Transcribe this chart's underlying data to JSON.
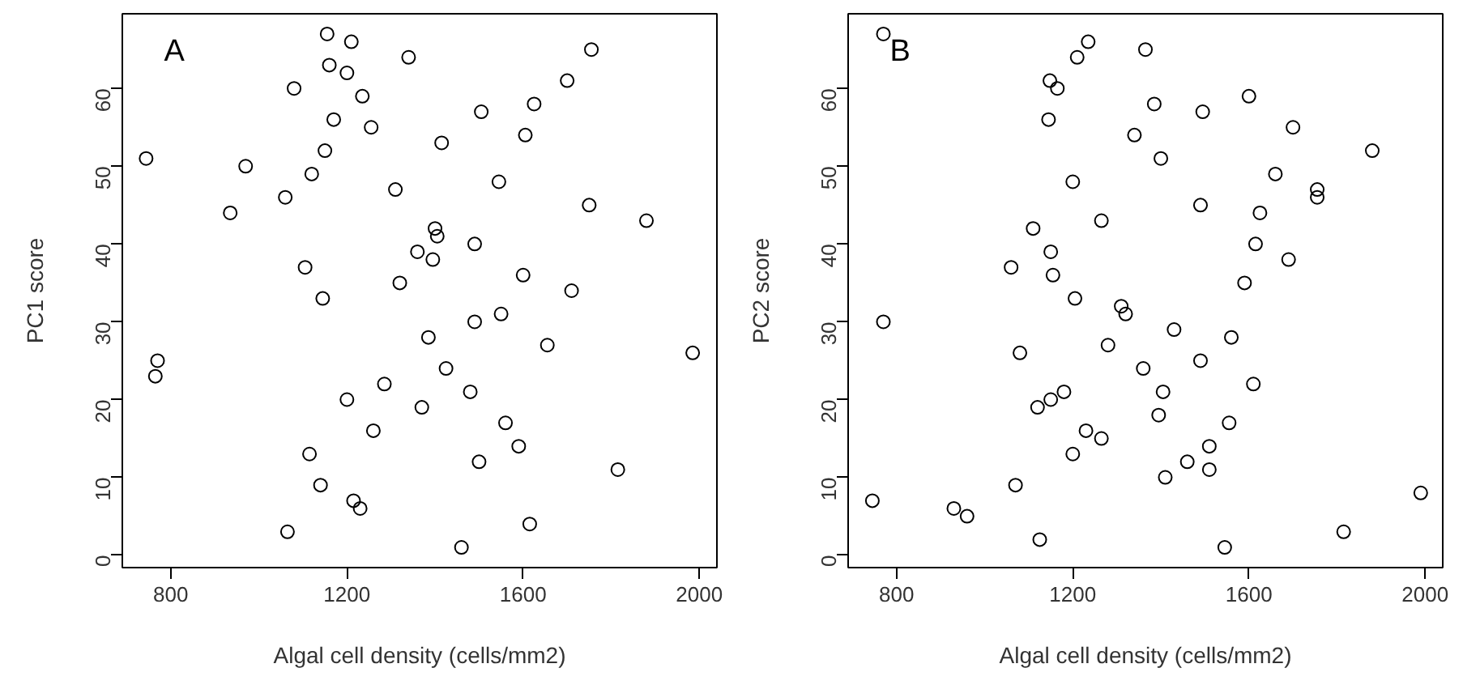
{
  "chart_data": [
    {
      "type": "scatter",
      "annotations": [
        "A"
      ],
      "xlabel": "Algal cell density (cells/mm2)",
      "ylabel": "PC1 score",
      "xlim": [
        690,
        2040
      ],
      "ylim": [
        -1.6,
        69.6
      ],
      "xticks": [
        800,
        1200,
        1600,
        2000
      ],
      "yticks": [
        0,
        10,
        20,
        30,
        40,
        50,
        60
      ],
      "grid": false,
      "marker": "circle",
      "series": [
        {
          "color": "#000000",
          "x": [
            744,
            770,
            765,
            935,
            970,
            1060,
            1065,
            1080,
            1105,
            1115,
            1120,
            1140,
            1145,
            1150,
            1155,
            1160,
            1170,
            1200,
            1200,
            1210,
            1215,
            1230,
            1235,
            1255,
            1260,
            1285,
            1310,
            1320,
            1340,
            1360,
            1370,
            1385,
            1395,
            1400,
            1405,
            1415,
            1425,
            1460,
            1480,
            1490,
            1490,
            1500,
            1505,
            1545,
            1550,
            1560,
            1590,
            1600,
            1605,
            1615,
            1625,
            1655,
            1700,
            1710,
            1750,
            1755,
            1815,
            1880,
            1985
          ],
          "values": [
            51,
            25,
            23,
            44,
            50,
            46,
            3,
            60,
            37,
            13,
            49,
            9,
            33,
            52,
            67,
            63,
            56,
            62,
            20,
            66,
            7,
            6,
            59,
            55,
            16,
            22,
            47,
            35,
            64,
            39,
            19,
            28,
            38,
            42,
            41,
            53,
            24,
            1,
            21,
            40,
            30,
            12,
            57,
            48,
            31,
            17,
            14,
            36,
            54,
            4,
            58,
            27,
            61,
            34,
            45,
            65,
            11,
            43,
            26
          ]
        }
      ]
    },
    {
      "type": "scatter",
      "annotations": [
        "B"
      ],
      "xlabel": "Algal cell density (cells/mm2)",
      "ylabel": "PC2 score",
      "xlim": [
        690,
        2040
      ],
      "ylim": [
        -1.6,
        69.6
      ],
      "xticks": [
        800,
        1200,
        1600,
        2000
      ],
      "yticks": [
        0,
        10,
        20,
        30,
        40,
        50,
        60
      ],
      "grid": false,
      "marker": "circle",
      "series": [
        {
          "color": "#000000",
          "x": [
            745,
            770,
            770,
            930,
            960,
            1070,
            1060,
            1080,
            1110,
            1120,
            1125,
            1145,
            1148,
            1150,
            1150,
            1155,
            1165,
            1180,
            1200,
            1200,
            1205,
            1210,
            1230,
            1235,
            1265,
            1265,
            1280,
            1310,
            1320,
            1340,
            1360,
            1365,
            1385,
            1395,
            1400,
            1405,
            1410,
            1430,
            1460,
            1490,
            1490,
            1495,
            1510,
            1510,
            1545,
            1555,
            1560,
            1590,
            1600,
            1610,
            1615,
            1625,
            1660,
            1690,
            1700,
            1755,
            1755,
            1815,
            1880,
            1990
          ],
          "values": [
            7,
            67,
            30,
            6,
            5,
            9,
            37,
            26,
            42,
            19,
            2,
            56,
            61,
            39,
            20,
            36,
            60,
            21,
            13,
            48,
            33,
            64,
            16,
            66,
            15,
            43,
            27,
            32,
            31,
            54,
            24,
            65,
            58,
            18,
            51,
            21,
            10,
            29,
            12,
            45,
            25,
            57,
            14,
            11,
            1,
            17,
            28,
            35,
            59,
            22,
            40,
            44,
            49,
            38,
            55,
            47,
            46,
            3,
            52,
            8
          ]
        }
      ]
    }
  ]
}
